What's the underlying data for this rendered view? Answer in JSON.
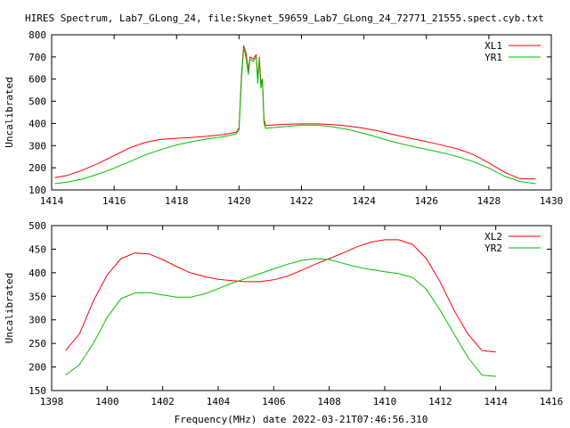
{
  "title": "HIRES Spectrum, Lab7_GLong_24, file:Skynet_59659_Lab7_GLong_24_72771_21555.spect.cyb.txt",
  "xlabel": "Frequency(MHz) date 2022-03-21T07:46:56.310",
  "chart_data": [
    {
      "type": "line",
      "ylabel": "Uncalibrated",
      "xlim": [
        1414,
        1430
      ],
      "ylim": [
        100,
        800
      ],
      "xticks": [
        1414,
        1416,
        1418,
        1420,
        1422,
        1424,
        1426,
        1428,
        1430
      ],
      "yticks": [
        100,
        200,
        300,
        400,
        500,
        600,
        700,
        800
      ],
      "legend_position": "top-right",
      "series": [
        {
          "name": "XL1",
          "color": "#ff0000",
          "points": [
            [
              1414.1,
              155
            ],
            [
              1414.5,
              165
            ],
            [
              1415.0,
              190
            ],
            [
              1415.5,
              220
            ],
            [
              1416.0,
              255
            ],
            [
              1416.5,
              290
            ],
            [
              1417.0,
              315
            ],
            [
              1417.5,
              328
            ],
            [
              1418.0,
              333
            ],
            [
              1418.5,
              337
            ],
            [
              1419.0,
              342
            ],
            [
              1419.5,
              350
            ],
            [
              1419.9,
              360
            ],
            [
              1420.0,
              380
            ],
            [
              1420.08,
              620
            ],
            [
              1420.15,
              750
            ],
            [
              1420.22,
              720
            ],
            [
              1420.3,
              640
            ],
            [
              1420.35,
              700
            ],
            [
              1420.45,
              690
            ],
            [
              1420.55,
              710
            ],
            [
              1420.6,
              600
            ],
            [
              1420.65,
              700
            ],
            [
              1420.7,
              580
            ],
            [
              1420.75,
              600
            ],
            [
              1420.8,
              420
            ],
            [
              1420.85,
              390
            ],
            [
              1421.0,
              392
            ],
            [
              1421.5,
              396
            ],
            [
              1422.0,
              398
            ],
            [
              1422.5,
              398
            ],
            [
              1423.0,
              395
            ],
            [
              1423.5,
              388
            ],
            [
              1424.0,
              378
            ],
            [
              1424.5,
              365
            ],
            [
              1425.0,
              348
            ],
            [
              1425.5,
              332
            ],
            [
              1426.0,
              318
            ],
            [
              1426.5,
              302
            ],
            [
              1427.0,
              285
            ],
            [
              1427.5,
              260
            ],
            [
              1428.0,
              222
            ],
            [
              1428.5,
              180
            ],
            [
              1429.0,
              150
            ],
            [
              1429.5,
              150
            ]
          ]
        },
        {
          "name": "YR1",
          "color": "#00c000",
          "points": [
            [
              1414.1,
              128
            ],
            [
              1414.5,
              135
            ],
            [
              1415.0,
              150
            ],
            [
              1415.5,
              172
            ],
            [
              1416.0,
              198
            ],
            [
              1416.5,
              228
            ],
            [
              1417.0,
              258
            ],
            [
              1417.5,
              282
            ],
            [
              1418.0,
              303
            ],
            [
              1418.5,
              318
            ],
            [
              1419.0,
              330
            ],
            [
              1419.5,
              340
            ],
            [
              1419.9,
              352
            ],
            [
              1420.0,
              370
            ],
            [
              1420.08,
              600
            ],
            [
              1420.15,
              740
            ],
            [
              1420.22,
              700
            ],
            [
              1420.3,
              620
            ],
            [
              1420.35,
              690
            ],
            [
              1420.45,
              680
            ],
            [
              1420.55,
              700
            ],
            [
              1420.6,
              580
            ],
            [
              1420.65,
              690
            ],
            [
              1420.7,
              560
            ],
            [
              1420.75,
              590
            ],
            [
              1420.8,
              400
            ],
            [
              1420.85,
              378
            ],
            [
              1421.0,
              380
            ],
            [
              1421.5,
              386
            ],
            [
              1422.0,
              392
            ],
            [
              1422.5,
              392
            ],
            [
              1423.0,
              385
            ],
            [
              1423.5,
              372
            ],
            [
              1424.0,
              355
            ],
            [
              1424.5,
              335
            ],
            [
              1425.0,
              315
            ],
            [
              1425.5,
              298
            ],
            [
              1426.0,
              283
            ],
            [
              1426.5,
              268
            ],
            [
              1427.0,
              250
            ],
            [
              1427.5,
              228
            ],
            [
              1428.0,
              198
            ],
            [
              1428.5,
              162
            ],
            [
              1429.0,
              138
            ],
            [
              1429.5,
              128
            ]
          ]
        }
      ]
    },
    {
      "type": "line",
      "ylabel": "Uncalibrated",
      "xlim": [
        1398,
        1416
      ],
      "ylim": [
        150,
        500
      ],
      "xticks": [
        1398,
        1400,
        1402,
        1404,
        1406,
        1408,
        1410,
        1412,
        1414,
        1416
      ],
      "yticks": [
        150,
        200,
        250,
        300,
        350,
        400,
        450,
        500
      ],
      "legend_position": "top-right",
      "series": [
        {
          "name": "XL2",
          "color": "#ff0000",
          "points": [
            [
              1398.5,
              235
            ],
            [
              1399.0,
              270
            ],
            [
              1399.5,
              340
            ],
            [
              1400.0,
              395
            ],
            [
              1400.5,
              430
            ],
            [
              1401.0,
              442
            ],
            [
              1401.5,
              440
            ],
            [
              1402.0,
              428
            ],
            [
              1402.5,
              413
            ],
            [
              1403.0,
              400
            ],
            [
              1403.5,
              392
            ],
            [
              1404.0,
              386
            ],
            [
              1404.5,
              383
            ],
            [
              1405.0,
              381
            ],
            [
              1405.5,
              381
            ],
            [
              1406.0,
              385
            ],
            [
              1406.5,
              393
            ],
            [
              1407.0,
              405
            ],
            [
              1407.5,
              418
            ],
            [
              1408.0,
              430
            ],
            [
              1408.5,
              442
            ],
            [
              1409.0,
              455
            ],
            [
              1409.5,
              465
            ],
            [
              1410.0,
              470
            ],
            [
              1410.5,
              470
            ],
            [
              1411.0,
              460
            ],
            [
              1411.5,
              430
            ],
            [
              1412.0,
              380
            ],
            [
              1412.5,
              320
            ],
            [
              1413.0,
              270
            ],
            [
              1413.5,
              235
            ],
            [
              1414.0,
              232
            ]
          ]
        },
        {
          "name": "YR2",
          "color": "#00c000",
          "points": [
            [
              1398.5,
              183
            ],
            [
              1399.0,
              205
            ],
            [
              1399.5,
              250
            ],
            [
              1400.0,
              305
            ],
            [
              1400.5,
              345
            ],
            [
              1401.0,
              357
            ],
            [
              1401.5,
              358
            ],
            [
              1402.0,
              353
            ],
            [
              1402.5,
              348
            ],
            [
              1403.0,
              348
            ],
            [
              1403.5,
              355
            ],
            [
              1404.0,
              366
            ],
            [
              1404.5,
              378
            ],
            [
              1405.0,
              388
            ],
            [
              1405.5,
              398
            ],
            [
              1406.0,
              408
            ],
            [
              1406.5,
              418
            ],
            [
              1407.0,
              426
            ],
            [
              1407.5,
              430
            ],
            [
              1408.0,
              428
            ],
            [
              1408.5,
              420
            ],
            [
              1409.0,
              412
            ],
            [
              1409.5,
              407
            ],
            [
              1410.0,
              402
            ],
            [
              1410.5,
              398
            ],
            [
              1411.0,
              390
            ],
            [
              1411.5,
              365
            ],
            [
              1412.0,
              320
            ],
            [
              1412.5,
              270
            ],
            [
              1413.0,
              220
            ],
            [
              1413.5,
              183
            ],
            [
              1414.0,
              180
            ]
          ]
        }
      ]
    }
  ]
}
